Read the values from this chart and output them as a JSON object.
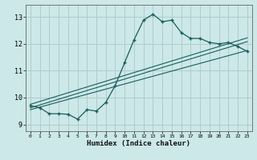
{
  "xlabel": "Humidex (Indice chaleur)",
  "ylabel": "",
  "xlim": [
    -0.5,
    23.5
  ],
  "ylim": [
    8.75,
    13.45
  ],
  "yticks": [
    9,
    10,
    11,
    12,
    13
  ],
  "xticks": [
    0,
    1,
    2,
    3,
    4,
    5,
    6,
    7,
    8,
    9,
    10,
    11,
    12,
    13,
    14,
    15,
    16,
    17,
    18,
    19,
    20,
    21,
    22,
    23
  ],
  "bg_color": "#cce8e8",
  "grid_color": "#b0cccc",
  "line_color": "#1a5c5c",
  "curve_x": [
    0,
    1,
    2,
    3,
    4,
    5,
    6,
    7,
    8,
    9,
    10,
    11,
    12,
    13,
    14,
    15,
    16,
    17,
    18,
    19,
    20,
    21,
    22,
    23
  ],
  "curve_y": [
    9.7,
    9.62,
    9.4,
    9.4,
    9.38,
    9.2,
    9.55,
    9.5,
    9.82,
    10.45,
    11.3,
    12.15,
    12.88,
    13.1,
    12.82,
    12.88,
    12.42,
    12.2,
    12.2,
    12.05,
    12.0,
    12.05,
    11.9,
    11.72
  ],
  "trend1_x": [
    0,
    23
  ],
  "trend1_y": [
    9.62,
    12.08
  ],
  "trend2_x": [
    0,
    23
  ],
  "trend2_y": [
    9.75,
    12.22
  ],
  "trend3_x": [
    0,
    23
  ],
  "trend3_y": [
    9.55,
    11.75
  ]
}
